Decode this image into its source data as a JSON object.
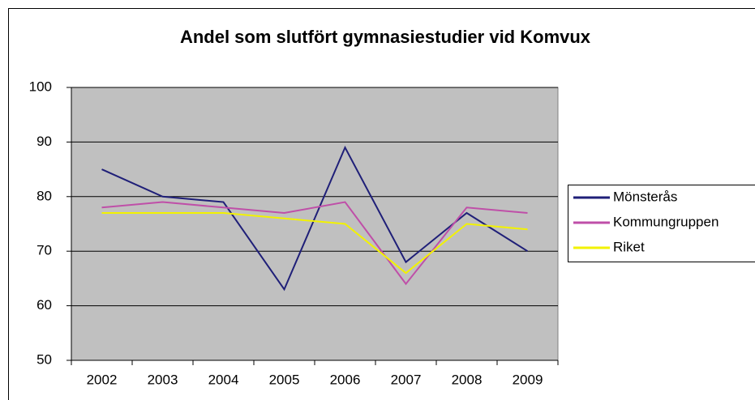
{
  "chart_data": {
    "type": "line",
    "title": "Andel som slutfört gymnasiestudier vid Komvux",
    "categories": [
      "2002",
      "2003",
      "2004",
      "2005",
      "2006",
      "2007",
      "2008",
      "2009"
    ],
    "series": [
      {
        "name": "Mönsterås",
        "color": "#1f1f78",
        "values": [
          85,
          80,
          79,
          63,
          89,
          68,
          77,
          70
        ]
      },
      {
        "name": "Kommungruppen",
        "color": "#bf4fa8",
        "values": [
          78,
          79,
          78,
          77,
          79,
          64,
          78,
          77
        ]
      },
      {
        "name": "Riket",
        "color": "#f2f200",
        "values": [
          77,
          77,
          77,
          76,
          75,
          66,
          75,
          74
        ]
      }
    ],
    "ylim": [
      50,
      100
    ],
    "yticks": [
      50,
      60,
      70,
      80,
      90,
      100
    ],
    "grid": true,
    "legend": "right"
  }
}
